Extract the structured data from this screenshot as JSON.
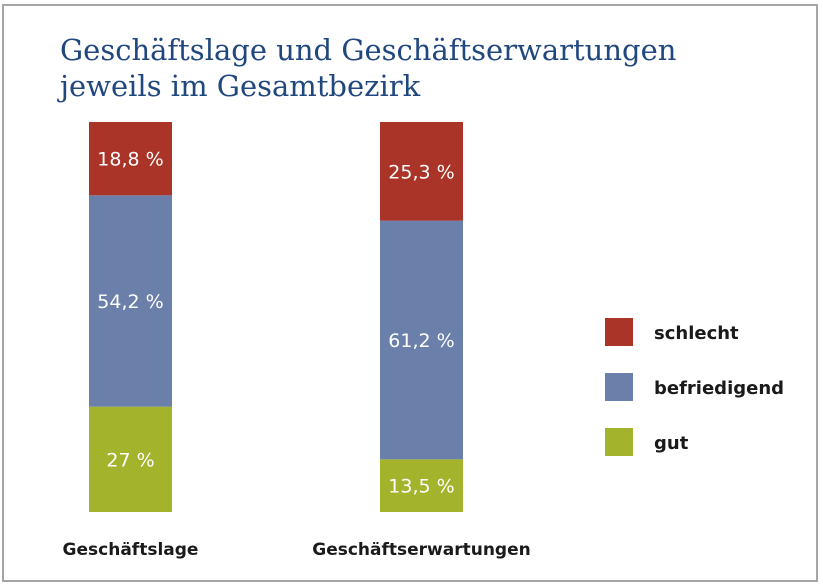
{
  "chart_data": {
    "type": "bar",
    "stacked": true,
    "title": [
      "Geschäftslage und Geschäftserwartungen",
      "jeweils im Gesamtbezirk"
    ],
    "categories": [
      "Geschäftslage",
      "Geschäftserwartungen"
    ],
    "series": [
      {
        "name": "gut",
        "color": "#a3b42c",
        "values": [
          27,
          13.5
        ],
        "labels": [
          "27 %",
          "13,5 %"
        ]
      },
      {
        "name": "befriedigend",
        "color": "#6a7fa9",
        "values": [
          54.2,
          61.2
        ],
        "labels": [
          "54,2 %",
          "61,2 %"
        ]
      },
      {
        "name": "schlecht",
        "color": "#a93427",
        "values": [
          18.8,
          25.3
        ],
        "labels": [
          "18,8 %",
          "25,3 %"
        ]
      }
    ],
    "legend": {
      "position": "right",
      "order": [
        "schlecht",
        "befriedigend",
        "gut"
      ]
    },
    "ylim": [
      0,
      100
    ],
    "grid": false
  }
}
